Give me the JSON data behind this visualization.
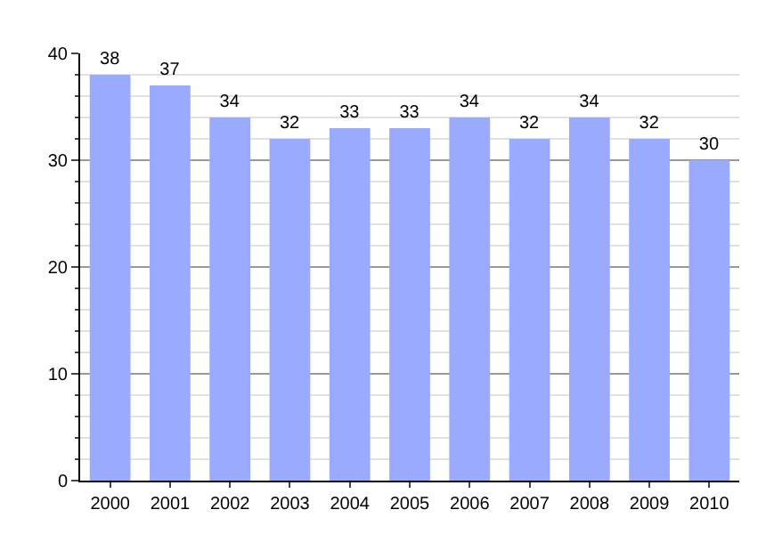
{
  "chart_data": {
    "type": "bar",
    "categories": [
      "2000",
      "2001",
      "2002",
      "2003",
      "2004",
      "2005",
      "2006",
      "2007",
      "2008",
      "2009",
      "2010"
    ],
    "values": [
      38,
      37,
      34,
      32,
      33,
      33,
      34,
      32,
      34,
      32,
      30
    ],
    "color": "#99aaff",
    "ylim": [
      0,
      40
    ],
    "yticks": [
      0,
      10,
      20,
      30,
      40
    ],
    "grid": "y",
    "data_labels": true
  }
}
